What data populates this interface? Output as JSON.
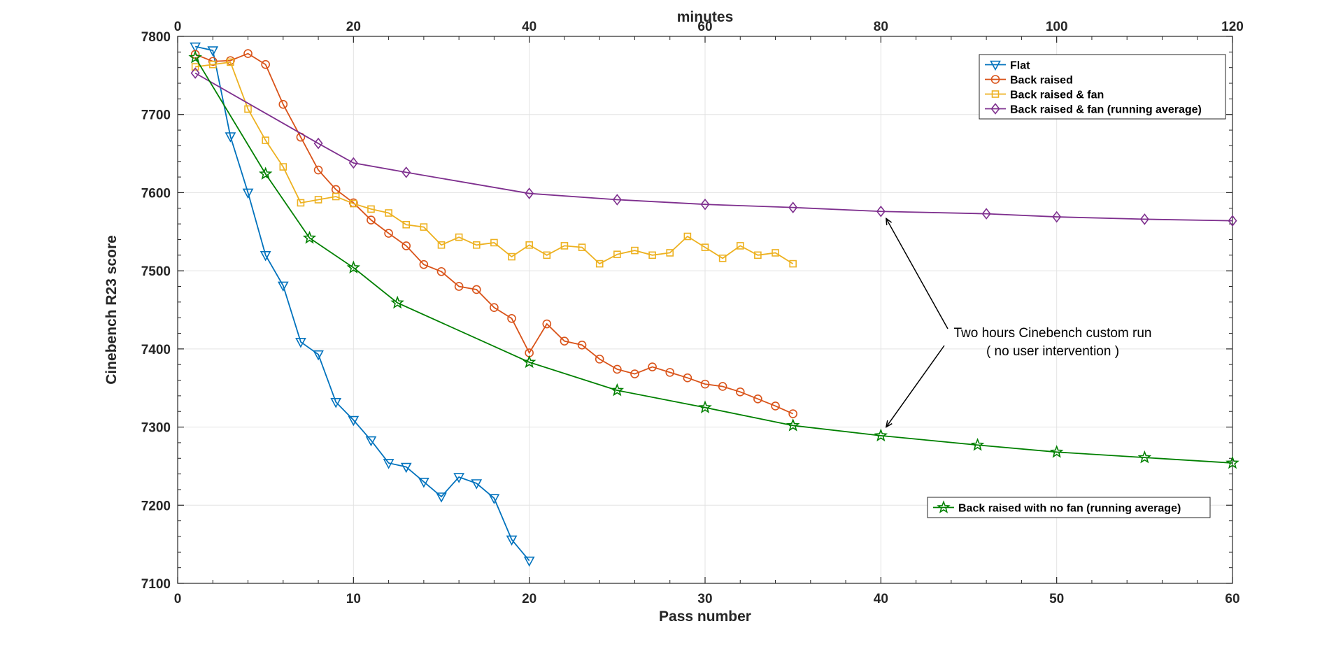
{
  "chart_data": {
    "type": "line",
    "title": "",
    "xlabel": "Pass number",
    "ylabel": "Cinebench R23 score",
    "x2label": "minutes",
    "xlim": [
      0,
      60
    ],
    "x2lim": [
      0,
      120
    ],
    "ylim": [
      7100,
      7800
    ],
    "xticks": [
      0,
      10,
      20,
      30,
      40,
      50,
      60
    ],
    "x2ticks": [
      0,
      20,
      40,
      60,
      80,
      100,
      120
    ],
    "yticks": [
      7100,
      7200,
      7300,
      7400,
      7500,
      7600,
      7700,
      7800
    ],
    "grid": true,
    "series": [
      {
        "name": "Flat",
        "color": "#0072BD",
        "marker": "triangle-down",
        "x": [
          1,
          2,
          3,
          4,
          5,
          6,
          7,
          8,
          9,
          10,
          11,
          12,
          13,
          14,
          15,
          16,
          17,
          18,
          19,
          20
        ],
        "y": [
          7787,
          7782,
          7672,
          7600,
          7520,
          7481,
          7409,
          7393,
          7332,
          7309,
          7283,
          7254,
          7249,
          7230,
          7211,
          7236,
          7228,
          7209,
          7156,
          7129
        ]
      },
      {
        "name": "Back raised",
        "color": "#D95319",
        "marker": "circle",
        "x": [
          1,
          2,
          3,
          4,
          5,
          6,
          7,
          8,
          9,
          10,
          11,
          12,
          13,
          14,
          15,
          16,
          17,
          18,
          19,
          20,
          21,
          22,
          23,
          24,
          25,
          26,
          27,
          28,
          29,
          30,
          31,
          32,
          33,
          34,
          35
        ],
        "y": [
          7777,
          7768,
          7769,
          7778,
          7764,
          7713,
          7671,
          7629,
          7604,
          7587,
          7565,
          7548,
          7532,
          7508,
          7499,
          7480,
          7476,
          7453,
          7439,
          7395,
          7432,
          7410,
          7405,
          7387,
          7374,
          7368,
          7377,
          7370,
          7363,
          7355,
          7352,
          7345,
          7336,
          7327,
          7317
        ]
      },
      {
        "name": "Back raised & fan",
        "color": "#EDB120",
        "marker": "square",
        "x": [
          1,
          2,
          3,
          4,
          5,
          6,
          7,
          8,
          9,
          10,
          11,
          12,
          13,
          14,
          15,
          16,
          17,
          18,
          19,
          20,
          21,
          22,
          23,
          24,
          25,
          26,
          27,
          28,
          29,
          30,
          31,
          32,
          33,
          34,
          35
        ],
        "y": [
          7761,
          7764,
          7767,
          7707,
          7667,
          7633,
          7587,
          7591,
          7595,
          7586,
          7579,
          7574,
          7559,
          7556,
          7533,
          7543,
          7533,
          7536,
          7518,
          7533,
          7520,
          7532,
          7530,
          7509,
          7521,
          7526,
          7520,
          7523,
          7544,
          7530,
          7516,
          7532,
          7520,
          7523,
          7509
        ]
      },
      {
        "name": "Back raised & fan (running average)",
        "color": "#7E2F8E",
        "marker": "diamond",
        "x": [
          1,
          8,
          10,
          13,
          20,
          25,
          30,
          35,
          40,
          46,
          50,
          55,
          60
        ],
        "y": [
          7753,
          7663,
          7638,
          7626,
          7599,
          7591,
          7585,
          7581,
          7576,
          7573,
          7569,
          7566,
          7564
        ]
      },
      {
        "name": "Back raised with no fan (running average)",
        "color": "#008000",
        "marker": "star",
        "x": [
          1,
          5,
          7.5,
          10,
          12.5,
          20,
          25,
          30,
          35,
          40,
          45.5,
          50,
          55,
          60
        ],
        "y": [
          7773,
          7624,
          7542,
          7504,
          7459,
          7383,
          7347,
          7325,
          7302,
          7289,
          7277,
          7268,
          7261,
          7254
        ]
      }
    ],
    "annotation": {
      "lines": [
        "Two hours Cinebench custom run",
        "( no user intervention )"
      ],
      "arrow_targets": [
        [
          40.3,
          7567
        ],
        [
          40.3,
          7300
        ]
      ]
    },
    "legend_main": {
      "placement": "top-right",
      "entries": [
        "Flat",
        "Back raised",
        "Back raised & fan",
        "Back raised & fan (running average)"
      ]
    },
    "legend_secondary": {
      "placement": "bottom-right",
      "entries": [
        "Back raised with no fan (running average)"
      ]
    }
  }
}
